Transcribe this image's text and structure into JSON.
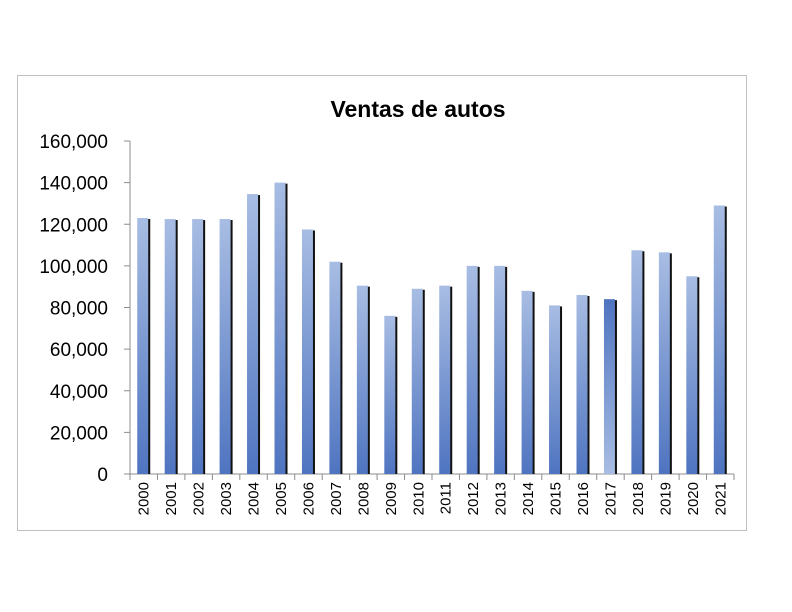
{
  "chart_data": {
    "type": "bar",
    "title": "Ventas de autos",
    "xlabel": "",
    "ylabel": "",
    "categories": [
      "2000",
      "2001",
      "2002",
      "2003",
      "2004",
      "2005",
      "2006",
      "2007",
      "2008",
      "2009",
      "2010",
      "2011",
      "2012",
      "2013",
      "2014",
      "2015",
      "2016",
      "2017",
      "2018",
      "2019",
      "2020",
      "2021"
    ],
    "values": [
      123000,
      122500,
      122500,
      122500,
      134500,
      140000,
      117500,
      102000,
      90500,
      76000,
      89000,
      90500,
      100000,
      100000,
      88000,
      81000,
      86000,
      84000,
      107500,
      106500,
      95000,
      129000
    ],
    "ylim": [
      0,
      160000
    ],
    "yticks": [
      "0",
      "20,000",
      "40,000",
      "60,000",
      "80,000",
      "100,000",
      "120,000",
      "140,000",
      "160,000"
    ],
    "grid": false,
    "legend": "none",
    "colors": {
      "bar_light": "#a8bde3",
      "bar_dark": "#4f74c0",
      "bar_shadow": "#111111",
      "axis": "#8c8c8c"
    }
  }
}
